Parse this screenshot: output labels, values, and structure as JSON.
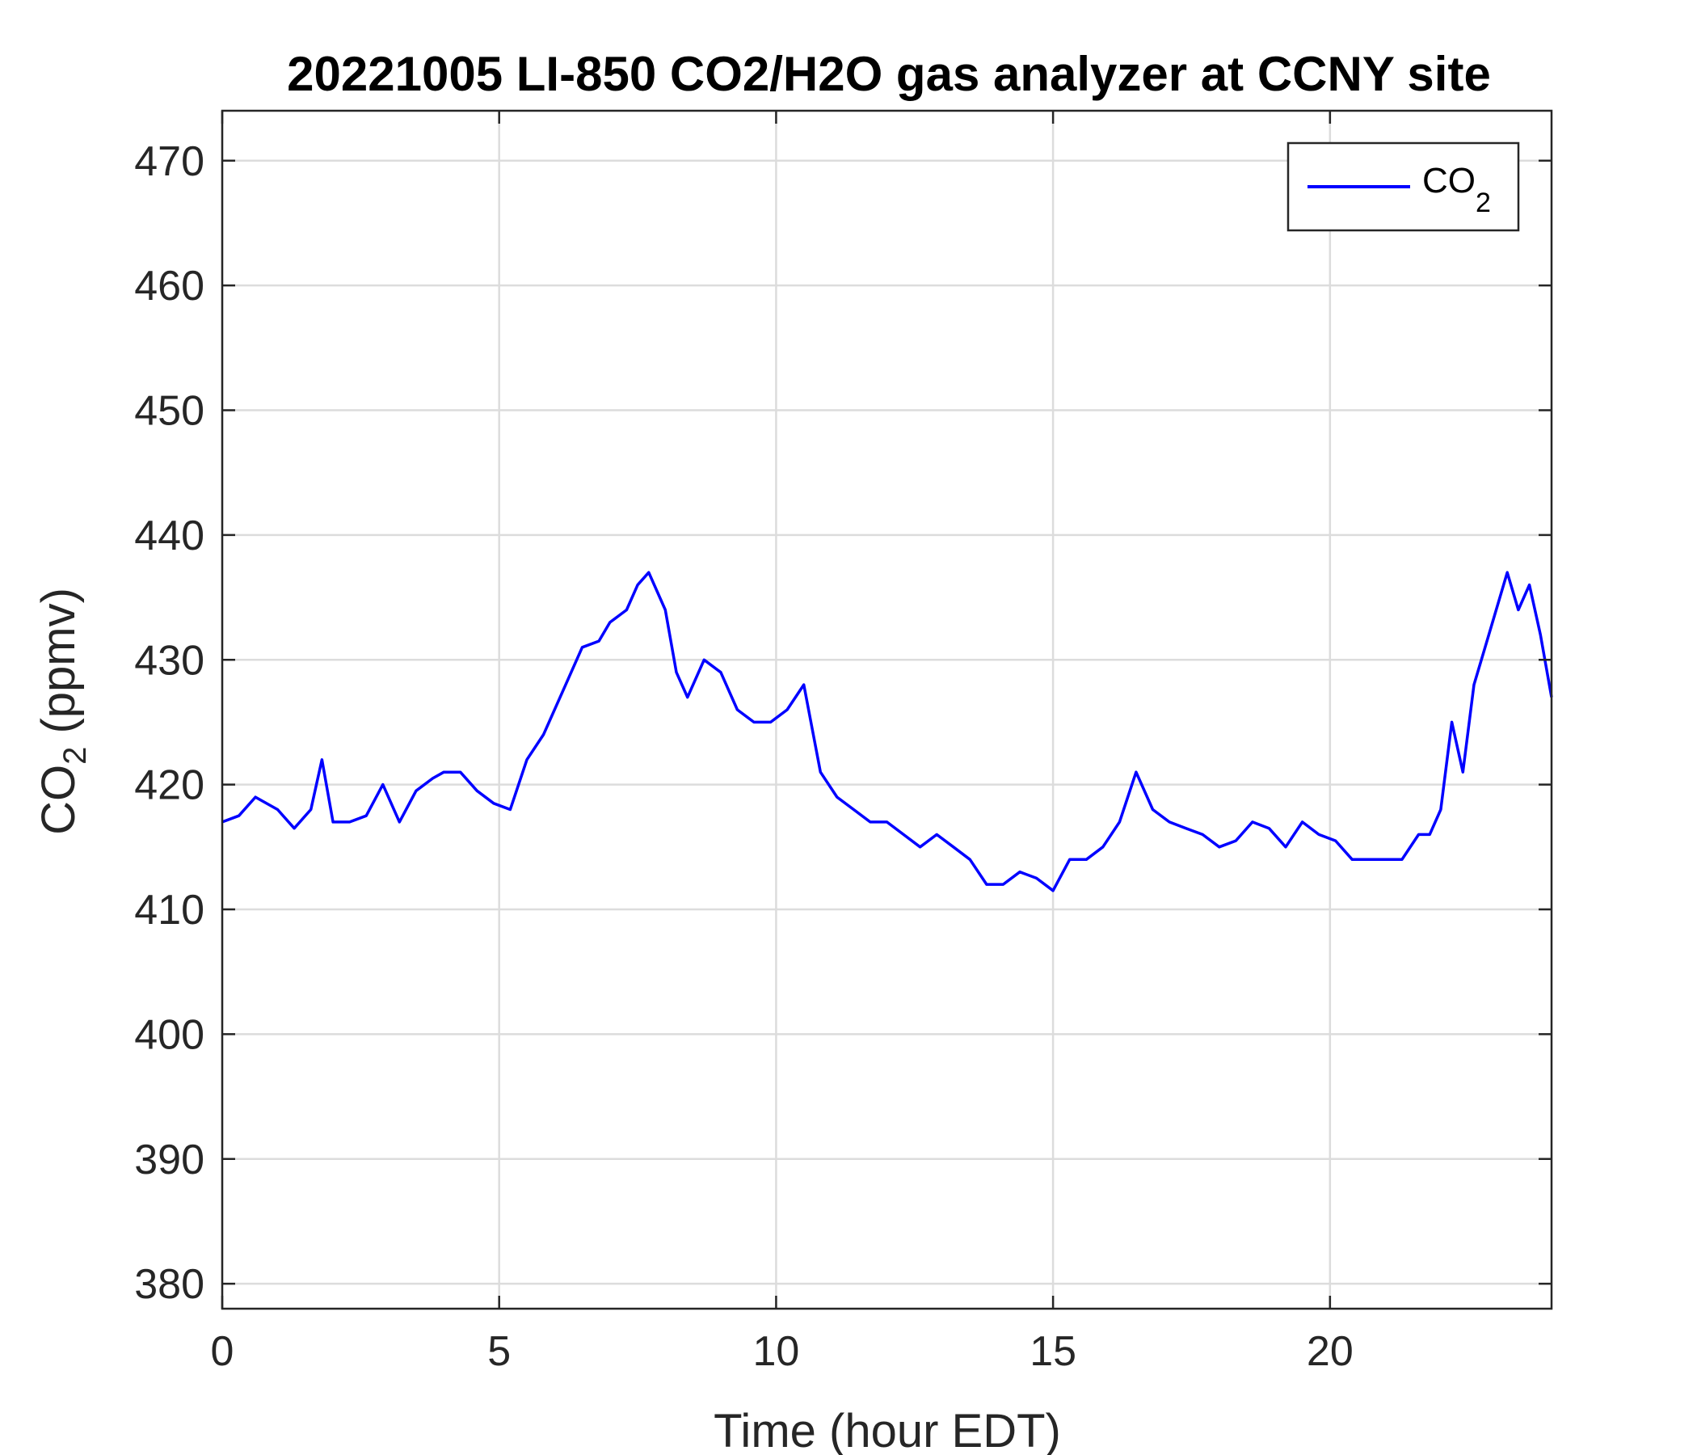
{
  "chart_data": {
    "type": "line",
    "title": "20221005 LI-850 CO2/H2O gas analyzer at CCNY site",
    "xlabel": "Time (hour EDT)",
    "ylabel": {
      "main": "CO",
      "sub": "2",
      "rest": " (ppmv)"
    },
    "xlim": [
      0,
      24
    ],
    "ylim": [
      378,
      474
    ],
    "xticks": [
      0,
      5,
      10,
      15,
      20
    ],
    "xtick_labels": [
      "0",
      "5",
      "10",
      "15",
      "20"
    ],
    "yticks": [
      380,
      390,
      400,
      410,
      420,
      430,
      440,
      450,
      460,
      470
    ],
    "ytick_labels": [
      "380",
      "390",
      "400",
      "410",
      "420",
      "430",
      "440",
      "450",
      "460",
      "470"
    ],
    "grid": true,
    "legend_position": "top-right",
    "series": [
      {
        "name": {
          "main": "CO",
          "sub": "2"
        },
        "color": "#0000ff",
        "x": [
          0,
          0.3,
          0.6,
          1.0,
          1.3,
          1.6,
          1.8,
          2.0,
          2.3,
          2.6,
          2.9,
          3.2,
          3.5,
          3.8,
          4.0,
          4.3,
          4.6,
          4.9,
          5.2,
          5.5,
          5.8,
          6.2,
          6.5,
          6.8,
          7.0,
          7.3,
          7.5,
          7.7,
          8.0,
          8.2,
          8.4,
          8.7,
          9.0,
          9.3,
          9.6,
          9.9,
          10.2,
          10.5,
          10.8,
          11.1,
          11.4,
          11.7,
          12.0,
          12.3,
          12.6,
          12.9,
          13.2,
          13.5,
          13.8,
          14.1,
          14.4,
          14.7,
          15.0,
          15.3,
          15.6,
          15.9,
          16.2,
          16.5,
          16.8,
          17.1,
          17.4,
          17.7,
          18.0,
          18.3,
          18.6,
          18.9,
          19.2,
          19.5,
          19.8,
          20.1,
          20.4,
          20.7,
          21.0,
          21.3,
          21.6,
          21.8,
          22.0,
          22.2,
          22.4,
          22.6,
          22.8,
          23.0,
          23.2,
          23.4,
          23.6,
          23.8,
          24.0
        ],
        "values": [
          417,
          417.5,
          419,
          418,
          416.5,
          418,
          422,
          417,
          417,
          417.5,
          420,
          417,
          419.5,
          420.5,
          421,
          421,
          419.5,
          418.5,
          418,
          422,
          424,
          428,
          431,
          431.5,
          433,
          434,
          436,
          437,
          434,
          429,
          427,
          430,
          429,
          426,
          425,
          425,
          426,
          428,
          421,
          419,
          418,
          417,
          417,
          416,
          415,
          416,
          415,
          414,
          412,
          412,
          413,
          412.5,
          411.5,
          414,
          414,
          415,
          417,
          421,
          418,
          417,
          416.5,
          416,
          415,
          415.5,
          417,
          416.5,
          415,
          417,
          416,
          415.5,
          414,
          414,
          414,
          414,
          416,
          416,
          418,
          425,
          421,
          428,
          431,
          434,
          437,
          434,
          436,
          432,
          427
        ]
      }
    ]
  }
}
